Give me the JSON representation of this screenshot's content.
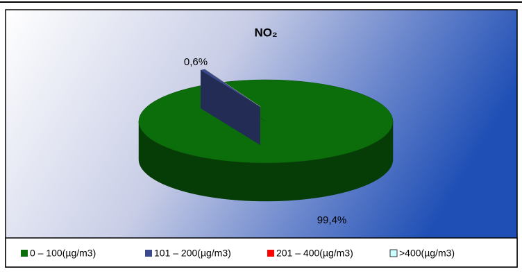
{
  "chart_data": {
    "type": "pie3d",
    "title": "NO₂",
    "categories": [
      "0 – 100(µg/m3)",
      "101 – 200(µg/m3)",
      "201 – 400(µg/m3)",
      ">400(µg/m3)"
    ],
    "values": [
      99.4,
      0.6,
      0,
      0
    ],
    "value_labels": [
      "99,4%",
      "0,6%",
      null,
      null
    ],
    "colors": [
      "#0b6e0b",
      "#3b4a8e",
      "#ff0000",
      "#ccffff"
    ]
  }
}
